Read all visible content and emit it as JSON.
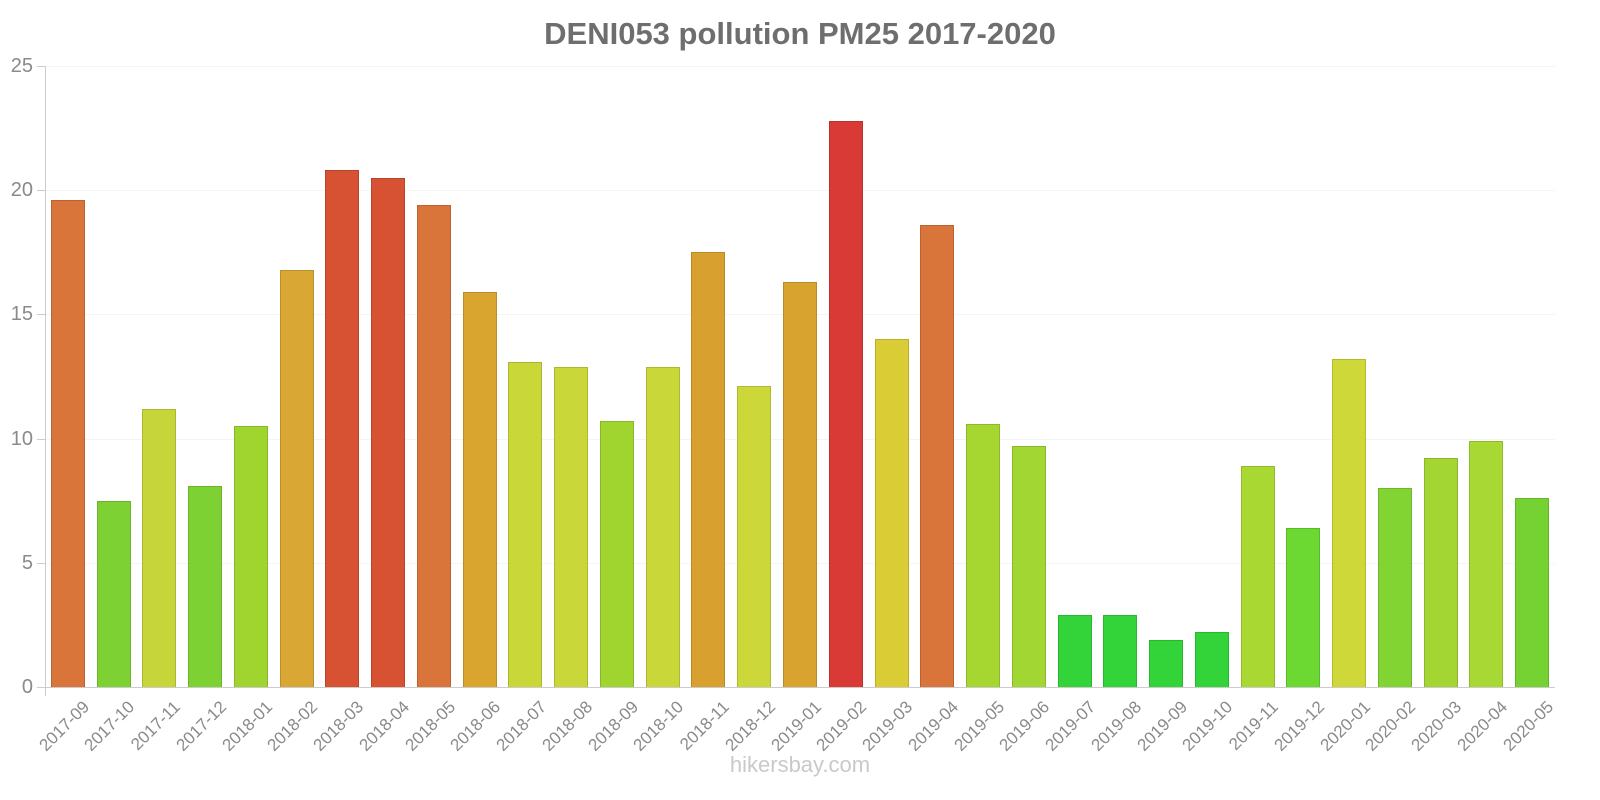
{
  "chart_data": {
    "type": "bar",
    "title": "DENI053 pollution PM25 2017-2020",
    "xlabel": "",
    "ylabel": "",
    "ylim": [
      0,
      25
    ],
    "yticks": [
      0,
      5,
      10,
      15,
      20,
      25
    ],
    "grid": "horizontal-faint",
    "legend_position": "none",
    "categories": [
      "2017-09",
      "2017-10",
      "2017-11",
      "2017-12",
      "2018-01",
      "2018-02",
      "2018-03",
      "2018-04",
      "2018-05",
      "2018-06",
      "2018-07",
      "2018-08",
      "2018-09",
      "2018-10",
      "2018-11",
      "2018-12",
      "2019-01",
      "2019-02",
      "2019-03",
      "2019-04",
      "2019-05",
      "2019-06",
      "2019-07",
      "2019-08",
      "2019-09",
      "2019-10",
      "2019-11",
      "2019-12",
      "2020-01",
      "2020-02",
      "2020-03",
      "2020-04",
      "2020-05"
    ],
    "values": [
      19.6,
      7.5,
      11.2,
      8.1,
      10.5,
      16.8,
      20.8,
      20.5,
      19.4,
      15.9,
      13.1,
      12.9,
      10.7,
      12.9,
      17.5,
      12.1,
      16.3,
      22.8,
      14.0,
      18.6,
      10.6,
      9.7,
      2.9,
      2.9,
      1.9,
      2.2,
      8.9,
      6.4,
      13.2,
      8.0,
      9.2,
      9.9,
      7.6
    ],
    "bar_colors": [
      "#d9743a",
      "#7ed133",
      "#c6d63a",
      "#7ed133",
      "#a0d52f",
      "#d9a834",
      "#d75133",
      "#d75133",
      "#d9743a",
      "#d9a52f",
      "#c9d838",
      "#c9d838",
      "#a0d52f",
      "#c9d838",
      "#d8a12f",
      "#ccd83a",
      "#d8a42f",
      "#d93a36",
      "#d9cc35",
      "#d9743a",
      "#a6d630",
      "#a2d632",
      "#33d439",
      "#33d439",
      "#33d439",
      "#33d439",
      "#aad832",
      "#6cd832",
      "#ced838",
      "#82d433",
      "#a3d633",
      "#a8d833",
      "#76d233"
    ],
    "colors_meaning": "green=low pollution, yellow=medium, orange/red=high",
    "axis_color": "#cccccc",
    "gridline_color": "#f4f4f4",
    "tick_label_color": "#8a8a8a",
    "title_color": "#6e6e6e"
  },
  "footer": {
    "text": "hikersbay.com"
  }
}
